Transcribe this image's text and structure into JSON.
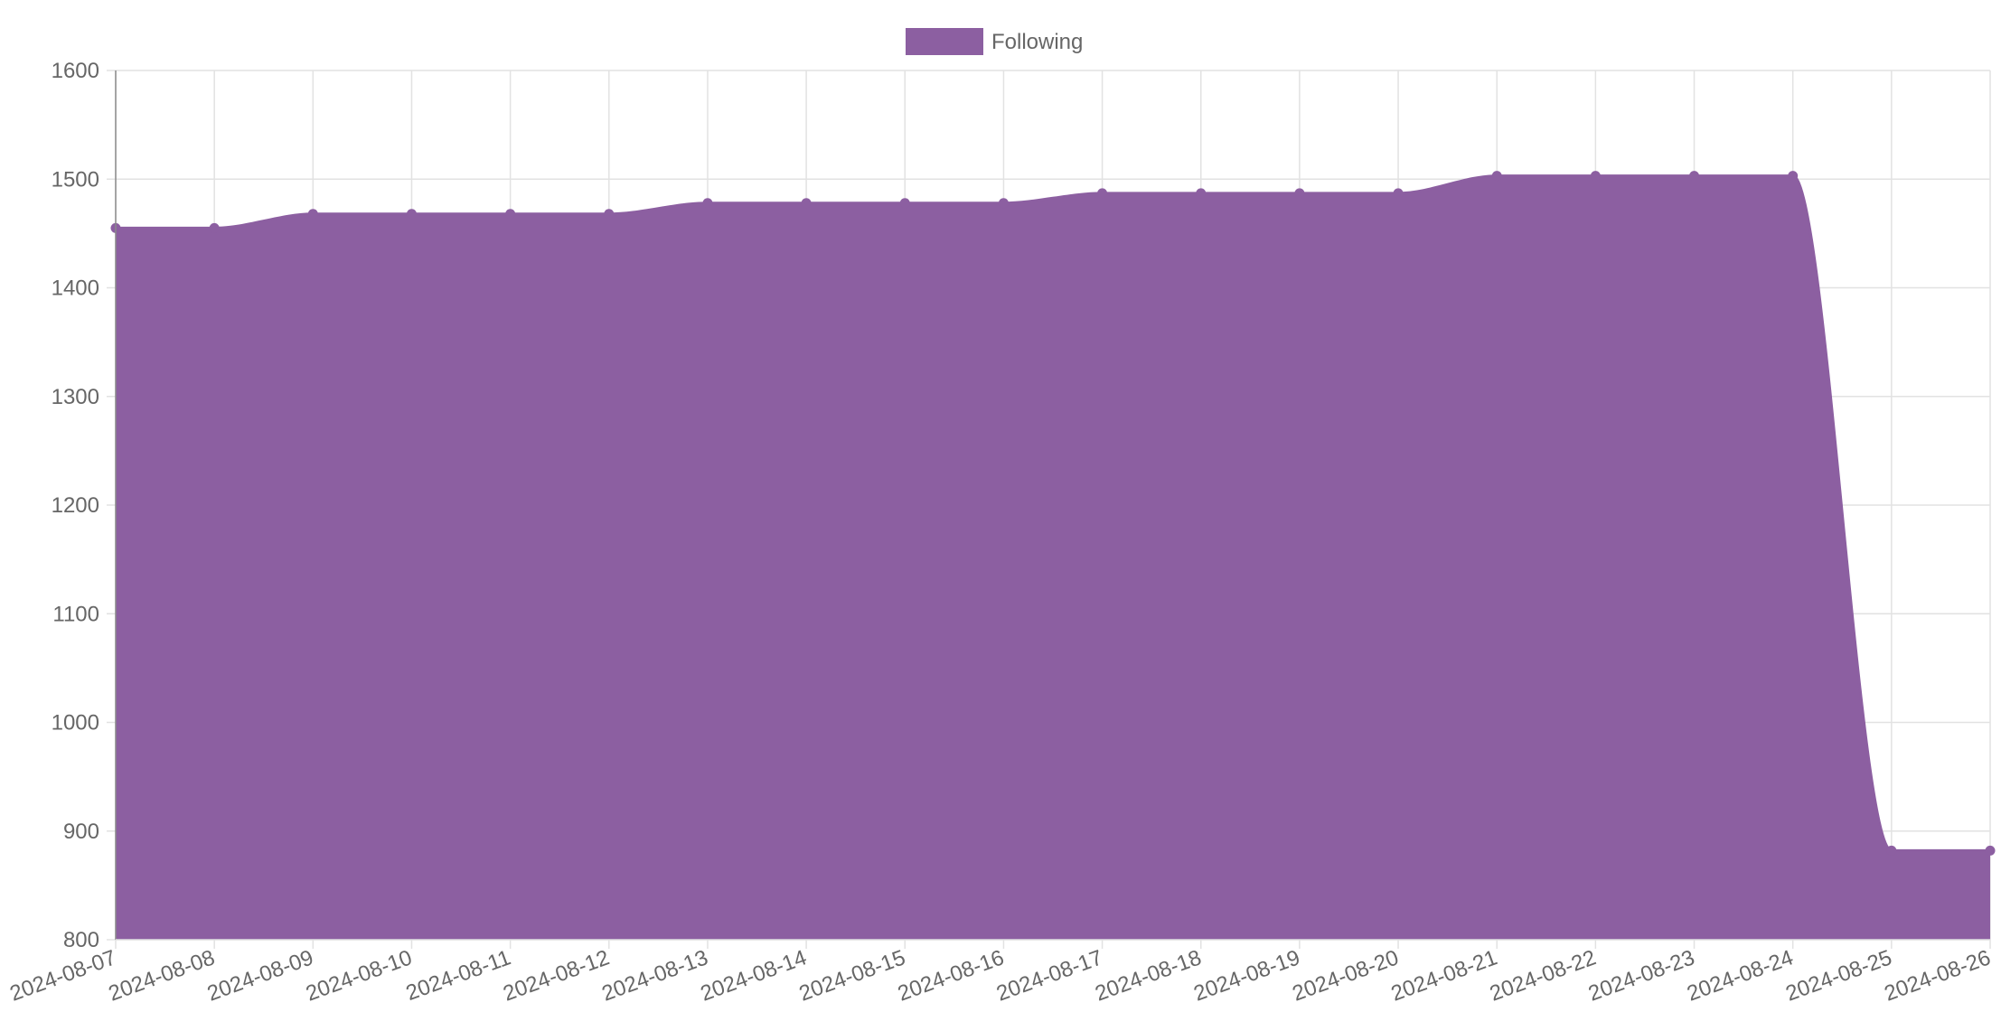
{
  "chart_data": {
    "type": "area",
    "x": [
      "2024-08-07",
      "2024-08-08",
      "2024-08-09",
      "2024-08-10",
      "2024-08-11",
      "2024-08-12",
      "2024-08-13",
      "2024-08-14",
      "2024-08-15",
      "2024-08-16",
      "2024-08-17",
      "2024-08-18",
      "2024-08-19",
      "2024-08-20",
      "2024-08-21",
      "2024-08-22",
      "2024-08-23",
      "2024-08-24",
      "2024-08-25",
      "2024-08-26"
    ],
    "series": [
      {
        "name": "Following",
        "color": "#8c5fa1",
        "values": [
          1455,
          1455,
          1468,
          1468,
          1468,
          1468,
          1478,
          1478,
          1478,
          1478,
          1487,
          1487,
          1487,
          1487,
          1503,
          1503,
          1503,
          1503,
          882,
          882
        ]
      }
    ],
    "ylim": [
      800,
      1600
    ],
    "yticks": [
      800,
      900,
      1000,
      1100,
      1200,
      1300,
      1400,
      1500,
      1600
    ],
    "grid": true,
    "legend_position": "top-center",
    "title": "",
    "xlabel": "",
    "ylabel": ""
  }
}
